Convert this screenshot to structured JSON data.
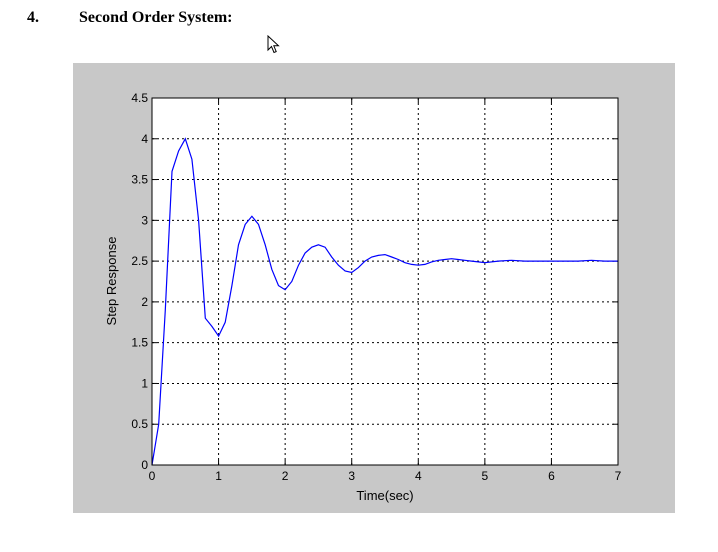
{
  "section": {
    "number": "4.",
    "title": "Second Order System:"
  },
  "icons": {
    "cursor": "mouse-pointer-icon"
  },
  "colors": {
    "figure_background": "#c8c8c8",
    "axes_background": "#ffffff",
    "line": "#0000ff"
  },
  "chart_data": {
    "type": "line",
    "title": "",
    "xlabel": "Time(sec)",
    "ylabel": "Step Response",
    "xlim": [
      0,
      7
    ],
    "ylim": [
      0,
      4.5
    ],
    "xticks": [
      0,
      1,
      2,
      3,
      4,
      5,
      6,
      7
    ],
    "yticks": [
      0,
      0.5,
      1,
      1.5,
      2,
      2.5,
      3,
      3.5,
      4,
      4.5
    ],
    "grid": true,
    "series": [
      {
        "x": [
          0,
          0.1,
          0.2,
          0.3,
          0.4,
          0.5,
          0.6,
          0.7,
          0.8,
          0.9,
          1.0,
          1.1,
          1.2,
          1.3,
          1.4,
          1.5,
          1.6,
          1.7,
          1.8,
          1.9,
          2.0,
          2.1,
          2.2,
          2.3,
          2.4,
          2.5,
          2.6,
          2.7,
          2.8,
          2.9,
          3.0,
          3.1,
          3.2,
          3.3,
          3.4,
          3.5,
          3.6,
          3.7,
          3.8,
          3.9,
          4.0,
          4.1,
          4.2,
          4.3,
          4.4,
          4.5,
          4.6,
          4.7,
          4.8,
          4.9,
          5.0,
          5.2,
          5.4,
          5.6,
          5.8,
          6.0,
          6.2,
          6.4,
          6.6,
          6.8,
          7.0
        ],
        "y": [
          0,
          0.5,
          1.9,
          3.6,
          3.85,
          4.0,
          3.75,
          3.0,
          1.8,
          1.7,
          1.58,
          1.75,
          2.2,
          2.7,
          2.95,
          3.05,
          2.95,
          2.7,
          2.4,
          2.2,
          2.15,
          2.25,
          2.45,
          2.6,
          2.67,
          2.7,
          2.67,
          2.55,
          2.45,
          2.38,
          2.36,
          2.42,
          2.5,
          2.55,
          2.57,
          2.58,
          2.55,
          2.52,
          2.48,
          2.46,
          2.45,
          2.46,
          2.49,
          2.51,
          2.52,
          2.53,
          2.52,
          2.51,
          2.5,
          2.49,
          2.48,
          2.5,
          2.51,
          2.5,
          2.5,
          2.5,
          2.5,
          2.5,
          2.51,
          2.5,
          2.5
        ]
      }
    ]
  }
}
